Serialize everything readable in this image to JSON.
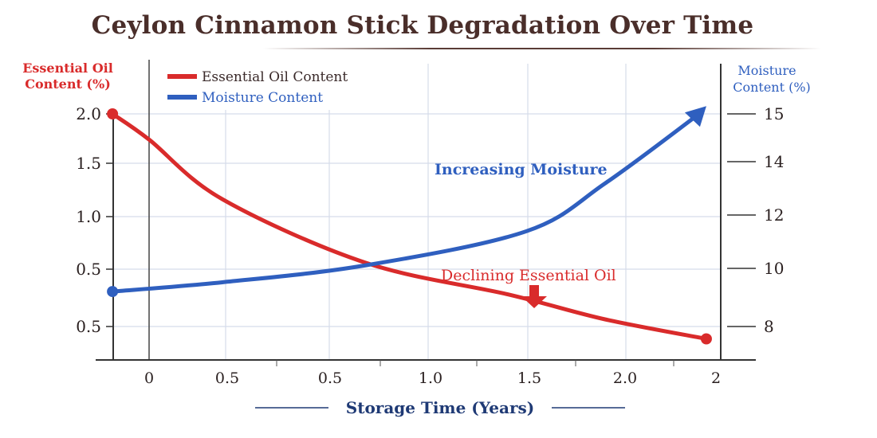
{
  "chart_data": {
    "type": "line",
    "title": "Ceylon Cinnamon Stick Degradation Over Time",
    "xlabel": "Storage Time (Years)",
    "ylabel_left": "Essential Oil Content (%)",
    "ylabel_right": "Moisture Content (%)",
    "x_tick_labels": [
      "0",
      "0.5",
      "0.5",
      "1.0",
      "1.5",
      "2.0",
      "2"
    ],
    "y_left_tick_labels": [
      "2.0",
      "1.5",
      "1.0",
      "0.5",
      "0.5"
    ],
    "y_right_tick_labels": [
      "15",
      "14",
      "12",
      "10",
      "8"
    ],
    "grid": true,
    "legend_position": "top-left",
    "series": [
      {
        "name": "Essential Oil Content",
        "axis": "left",
        "color": "#d92b2b",
        "x": [
          -0.13,
          0,
          0.26,
          0.77,
          1.28,
          1.62,
          1.98
        ],
        "y": [
          2.0,
          1.75,
          1.17,
          0.55,
          0.24,
          0.0,
          -0.19
        ]
      },
      {
        "name": "Moisture Content",
        "axis": "right",
        "color": "#2f5fbf",
        "x": [
          -0.13,
          0.26,
          0.77,
          1.34,
          1.62,
          1.98
        ],
        "y": [
          9.25,
          9.55,
          10.1,
          11.2,
          12.75,
          15.2
        ]
      }
    ],
    "annotations": [
      {
        "text": "Increasing Moisture",
        "color": "#2f5fbf"
      },
      {
        "text": "Declining Essential Oil",
        "color": "#d92b2b"
      }
    ]
  }
}
